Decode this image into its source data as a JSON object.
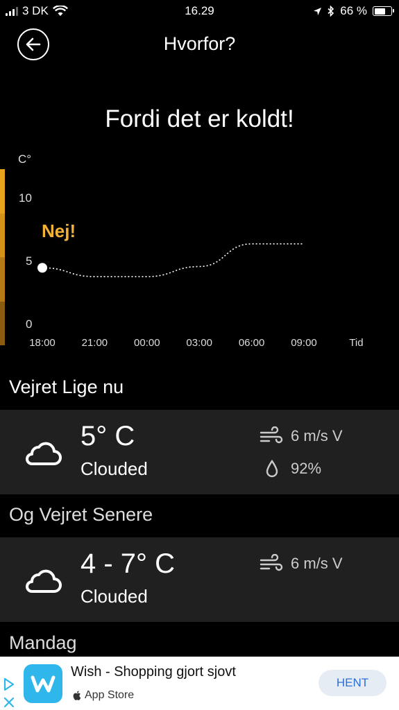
{
  "status_bar": {
    "carrier": "3 DK",
    "time": "16.29",
    "battery": "66 %",
    "battery_level": 0.66
  },
  "nav": {
    "title": "Hvorfor?"
  },
  "headline": "Fordi det er koldt!",
  "chart_data": {
    "type": "line",
    "y_unit_label": "C°",
    "x_axis_label": "Tid",
    "x_tick_labels": [
      "18:00",
      "21:00",
      "00:00",
      "03:00",
      "06:00",
      "09:00"
    ],
    "y_tick_labels": [
      "10",
      "5",
      "0"
    ],
    "ylim": [
      0,
      12
    ],
    "x": [
      "18:00",
      "21:00",
      "00:00",
      "03:00",
      "06:00",
      "09:00"
    ],
    "values": [
      4.5,
      3.8,
      3.8,
      4.6,
      6.4,
      6.4
    ],
    "annotation": "Nej!",
    "colors": {
      "accent": "#F2B233",
      "line": "#ffffff",
      "side_bar": [
        "#E8A21B",
        "#D4921A",
        "#B57A16",
        "#8A5C10"
      ]
    }
  },
  "current": {
    "section_title": "Vejret Lige nu",
    "temp": "5° C",
    "condition": "Clouded",
    "wind": "6 m/s V",
    "humidity": "92%",
    "icon": "cloud-icon"
  },
  "later": {
    "section_title": "Og Vejret Senere",
    "temp": "4 - 7° C",
    "condition": "Clouded",
    "wind": "6 m/s V",
    "icon": "cloud-icon"
  },
  "next_section_title": "Mandag",
  "ad": {
    "title": "Wish - Shopping gjort sjovt",
    "store": "App Store",
    "button": "HENT",
    "colors": {
      "logo": "#2FB7EC",
      "button_text": "#2A6FD6"
    }
  }
}
